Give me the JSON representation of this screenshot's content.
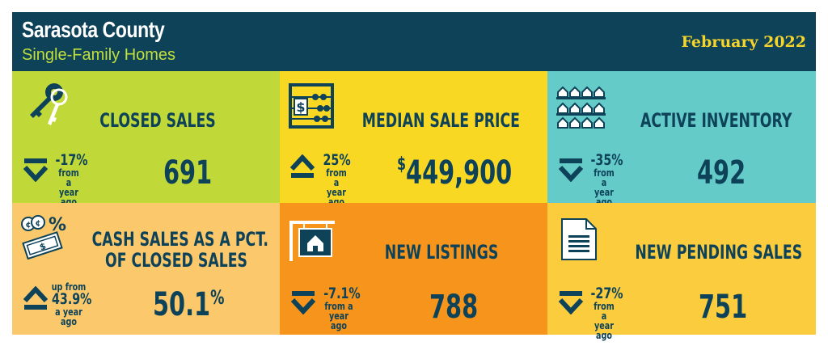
{
  "header": {
    "title": "Sarasota County",
    "subtitle": "Single-Family Homes",
    "date": "February 2022"
  },
  "colors": {
    "header_bg": "#0d4259",
    "subtitle": "#c3df3a",
    "date": "#f6d52a",
    "closed_sales": "#c1d839",
    "median_price": "#f9d823",
    "active_inventory": "#65cbc8",
    "cash_sales": "#fbc96b",
    "new_listings": "#f7941c",
    "new_pending": "#fbcd3e",
    "ink": "#0d4259"
  },
  "tiles": {
    "closed_sales": {
      "title": "CLOSED SALES",
      "value": "691",
      "change": "-17%",
      "change_note_1": "from a",
      "change_note_2": "year ago",
      "direction": "down",
      "icon": "keys-icon"
    },
    "median_price": {
      "title": "MEDIAN SALE PRICE",
      "value_prefix": "$",
      "value": "449,900",
      "change": "25%",
      "change_note_1": "from a",
      "change_note_2": "year ago",
      "direction": "up",
      "icon": "abacus-icon"
    },
    "active_inventory": {
      "title": "ACTIVE INVENTORY",
      "value": "492",
      "change": "-35%",
      "change_note_1": "from a",
      "change_note_2": "year ago",
      "direction": "down",
      "icon": "houses-grid-icon"
    },
    "cash_sales": {
      "title_line1": "CASH SALES AS A PCT.",
      "title_line2": "OF CLOSED SALES",
      "value": "50.1",
      "value_suffix": "%",
      "change_note_0": "up from",
      "change": "43.9%",
      "change_note_2": "a year ago",
      "direction": "up",
      "icon": "cash-percent-icon"
    },
    "new_listings": {
      "title": "NEW LISTINGS",
      "value": "788",
      "change": "-7.1%",
      "change_note_1": "from a",
      "change_note_2": "year ago",
      "direction": "down",
      "icon": "for-sale-sign-icon"
    },
    "new_pending": {
      "title": "NEW PENDING SALES",
      "value": "751",
      "change": "-27%",
      "change_note_1": "from a",
      "change_note_2": "year ago",
      "direction": "down",
      "icon": "document-icon"
    }
  }
}
